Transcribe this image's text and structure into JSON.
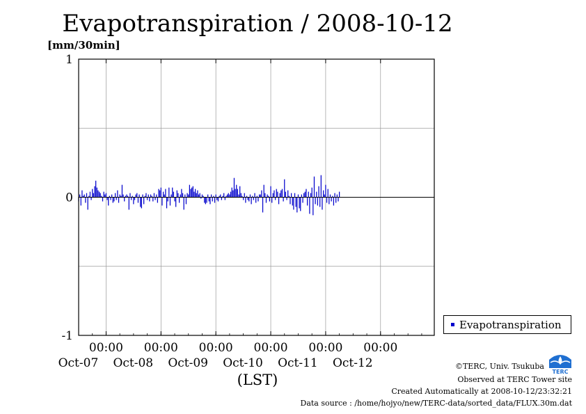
{
  "chart_data": {
    "type": "bar",
    "title": "Evapotranspiration / 2008-10-12",
    "ylabel": "[mm/30min]",
    "xlabel": "(LST)",
    "ylim": [
      -1,
      1
    ],
    "yticks": [
      "1",
      "0",
      "-1"
    ],
    "x_start": "2008-10-06 12:00",
    "x_end": "2008-10-12 23:30",
    "xticks": [
      {
        "time": "00:00",
        "date": "Oct-07"
      },
      {
        "time": "00:00",
        "date": "Oct-08"
      },
      {
        "time": "00:00",
        "date": "Oct-09"
      },
      {
        "time": "00:00",
        "date": "Oct-10"
      },
      {
        "time": "00:00",
        "date": "Oct-11"
      },
      {
        "time": "00:00",
        "date": "Oct-12"
      }
    ],
    "grid": true,
    "legend_position": "right",
    "series": [
      {
        "name": "Evapotranspiration",
        "color": "#0000cc",
        "interval_minutes": 30,
        "values": [
          -0.03,
          0.02,
          -0.06,
          0.05,
          0.01,
          0.02,
          -0.04,
          0.03,
          -0.09,
          0.01,
          0.04,
          -0.02,
          0.06,
          0.03,
          0.08,
          0.12,
          0.07,
          0.05,
          0.04,
          0.03,
          0.01,
          -0.03,
          0.04,
          0.02,
          0.03,
          -0.02,
          -0.06,
          0.01,
          -0.02,
          0.02,
          -0.04,
          -0.03,
          0.03,
          -0.02,
          0.05,
          -0.04,
          0.02,
          0.01,
          0.09,
          0.02,
          -0.03,
          0.01,
          0.02,
          0.01,
          -0.09,
          0.03,
          -0.02,
          0.01,
          -0.05,
          -0.02,
          0.02,
          0.03,
          -0.04,
          0.02,
          -0.07,
          -0.08,
          0.02,
          -0.05,
          0.01,
          0.03,
          -0.02,
          0.02,
          -0.03,
          0.02,
          0.01,
          -0.03,
          0.03,
          -0.02,
          0.02,
          -0.04,
          0.06,
          0.05,
          0.07,
          -0.06,
          0.04,
          0.02,
          0.06,
          -0.08,
          -0.03,
          0.07,
          -0.06,
          0.02,
          0.07,
          0.04,
          -0.03,
          -0.07,
          0.05,
          0.03,
          -0.04,
          0.02,
          0.06,
          0.03,
          -0.09,
          0.02,
          -0.05,
          0.03,
          0.02,
          0.09,
          0.06,
          0.07,
          0.08,
          0.04,
          0.06,
          0.03,
          0.05,
          0.02,
          0.03,
          -0.01,
          0.02,
          0.01,
          -0.04,
          -0.05,
          -0.04,
          0.02,
          -0.03,
          -0.05,
          0.02,
          -0.03,
          0.01,
          -0.04,
          0.02,
          -0.02,
          -0.03,
          0.01,
          0.02,
          -0.02,
          0.01,
          0.03,
          -0.02,
          0.01,
          0.02,
          0.03,
          0.02,
          0.04,
          0.07,
          0.05,
          0.14,
          0.06,
          0.09,
          0.06,
          0.02,
          0.08,
          0.03,
          0.01,
          -0.02,
          0.03,
          -0.04,
          0.01,
          -0.02,
          -0.03,
          0.02,
          -0.05,
          0.01,
          -0.02,
          0.03,
          -0.04,
          0.01,
          -0.03,
          0.02,
          0.02,
          0.05,
          -0.11,
          0.09,
          0.03,
          -0.04,
          0.02,
          0.01,
          -0.03,
          0.08,
          -0.04,
          0.03,
          0.05,
          -0.02,
          0.06,
          0.04,
          -0.05,
          0.03,
          0.05,
          0.06,
          -0.03,
          0.13,
          0.04,
          -0.02,
          0.05,
          0.01,
          -0.05,
          0.03,
          -0.06,
          -0.09,
          0.03,
          -0.07,
          -0.11,
          0.02,
          -0.08,
          -0.1,
          0.02,
          -0.04,
          0.03,
          0.04,
          0.06,
          -0.06,
          0.04,
          -0.12,
          0.03,
          0.07,
          -0.13,
          0.15,
          -0.05,
          0.04,
          -0.06,
          0.08,
          -0.07,
          0.16,
          -0.09,
          0.05,
          0.02,
          0.09,
          -0.04,
          0.06,
          -0.05,
          0.02,
          -0.03,
          0.01,
          -0.06,
          0.03,
          -0.04,
          0.02,
          -0.03,
          0.04
        ]
      }
    ]
  },
  "legend": {
    "label": "Evapotranspiration"
  },
  "credits": {
    "org": "©TERC, Univ. Tsukuba",
    "site": "Observed at TERC Tower site",
    "created": "Created Automatically at 2008-10-12/23:32:21",
    "source": "Data source : /home/hojyo/new/TERC-data/sorted_data/FLUX.30m.dat"
  },
  "logo": {
    "text": "TERC",
    "color": "#1f6fd1"
  }
}
